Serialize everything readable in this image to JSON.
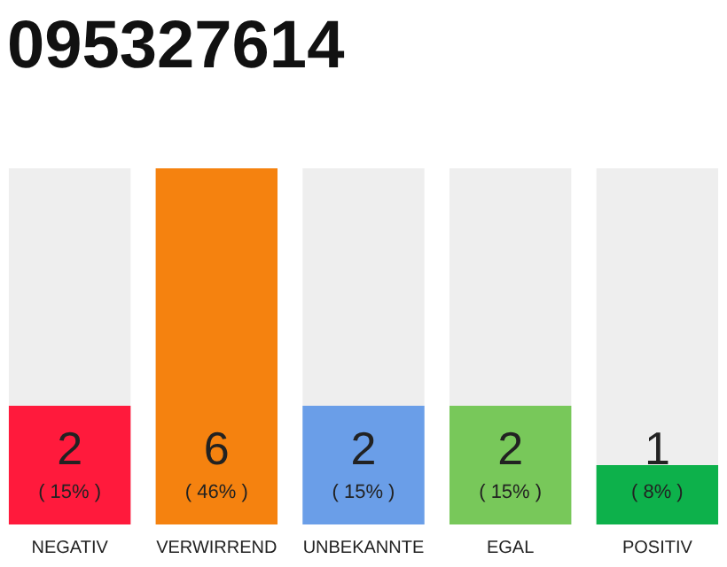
{
  "chart_data": {
    "type": "bar",
    "title": "095327614",
    "categories": [
      "NEGATIV",
      "VERWIRREND",
      "UNBEKANNTE",
      "EGAL",
      "POSITIV"
    ],
    "values": [
      2,
      6,
      2,
      2,
      1
    ],
    "colors": [
      "#ff1a3c",
      "#f5820f",
      "#6a9ee8",
      "#78c85a",
      "#0db14b"
    ],
    "tick_labels": "x",
    "value_labels": [
      "2",
      "6",
      "2",
      "2",
      "1"
    ],
    "annotations": [
      "( 15% )",
      "( 46% )",
      "( 15% )",
      "( 15% )",
      "( 8% )"
    ]
  }
}
